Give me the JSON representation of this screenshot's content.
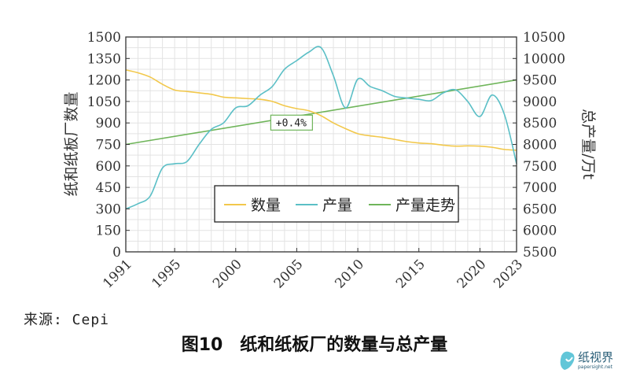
{
  "chart_data": {
    "type": "line",
    "title": "",
    "xlabel": "",
    "ylabel_left": "纸和纸板厂数量",
    "ylabel_right": "总产量/万t",
    "xlim": [
      1991,
      2023
    ],
    "xticks": [
      1991,
      1995,
      2000,
      2005,
      2010,
      2015,
      2020,
      2023
    ],
    "ylim_left": [
      0,
      1500
    ],
    "yticks_left": [
      0,
      150,
      300,
      450,
      600,
      750,
      900,
      1050,
      1200,
      1350,
      1500
    ],
    "ylim_right": [
      5500,
      10500
    ],
    "yticks_right": [
      5500,
      6000,
      6500,
      7000,
      7500,
      8000,
      8500,
      9000,
      9500,
      10000,
      10500
    ],
    "grid": true,
    "legend_position": "lower-center",
    "series": [
      {
        "name": "数量",
        "axis": "left",
        "color": "#f2c84b",
        "points": [
          [
            1991,
            1270
          ],
          [
            1992,
            1250
          ],
          [
            1993,
            1220
          ],
          [
            1994,
            1170
          ],
          [
            1995,
            1130
          ],
          [
            1996,
            1120
          ],
          [
            1997,
            1110
          ],
          [
            1998,
            1100
          ],
          [
            1999,
            1080
          ],
          [
            2000,
            1075
          ],
          [
            2001,
            1070
          ],
          [
            2002,
            1065
          ],
          [
            2003,
            1050
          ],
          [
            2004,
            1020
          ],
          [
            2005,
            1000
          ],
          [
            2006,
            985
          ],
          [
            2007,
            950
          ],
          [
            2008,
            900
          ],
          [
            2009,
            860
          ],
          [
            2010,
            825
          ],
          [
            2011,
            810
          ],
          [
            2012,
            800
          ],
          [
            2013,
            785
          ],
          [
            2014,
            770
          ],
          [
            2015,
            760
          ],
          [
            2016,
            755
          ],
          [
            2017,
            745
          ],
          [
            2018,
            738
          ],
          [
            2019,
            740
          ],
          [
            2020,
            738
          ],
          [
            2021,
            730
          ],
          [
            2022,
            715
          ],
          [
            2023,
            710
          ]
        ]
      },
      {
        "name": "产量",
        "axis": "right",
        "color": "#5bbfc6",
        "points": [
          [
            1991,
            6500
          ],
          [
            1992,
            6620
          ],
          [
            1993,
            6800
          ],
          [
            1994,
            7450
          ],
          [
            1995,
            7550
          ],
          [
            1996,
            7600
          ],
          [
            1997,
            8000
          ],
          [
            1998,
            8350
          ],
          [
            1999,
            8500
          ],
          [
            2000,
            8850
          ],
          [
            2001,
            8900
          ],
          [
            2002,
            9150
          ],
          [
            2003,
            9350
          ],
          [
            2004,
            9750
          ],
          [
            2005,
            9950
          ],
          [
            2006,
            10150
          ],
          [
            2007,
            10250
          ],
          [
            2008,
            9600
          ],
          [
            2009,
            8850
          ],
          [
            2010,
            9520
          ],
          [
            2011,
            9350
          ],
          [
            2012,
            9250
          ],
          [
            2013,
            9120
          ],
          [
            2014,
            9080
          ],
          [
            2015,
            9050
          ],
          [
            2016,
            9020
          ],
          [
            2017,
            9200
          ],
          [
            2018,
            9270
          ],
          [
            2019,
            9000
          ],
          [
            2020,
            8650
          ],
          [
            2021,
            9150
          ],
          [
            2022,
            8700
          ],
          [
            2023,
            7550
          ]
        ]
      },
      {
        "name": "产量走势",
        "axis": "right",
        "color": "#6fb55a",
        "points": [
          [
            1991,
            8000
          ],
          [
            2023,
            9500
          ]
        ]
      }
    ],
    "annotations": [
      {
        "text": "+0.4%",
        "x": 2003,
        "y_right": 8480
      }
    ]
  },
  "source": "来源: Cepi",
  "caption": "图10　纸和纸板厂的数量与总产量",
  "watermark": {
    "text": "纸视界",
    "sub": "papersight.net"
  }
}
